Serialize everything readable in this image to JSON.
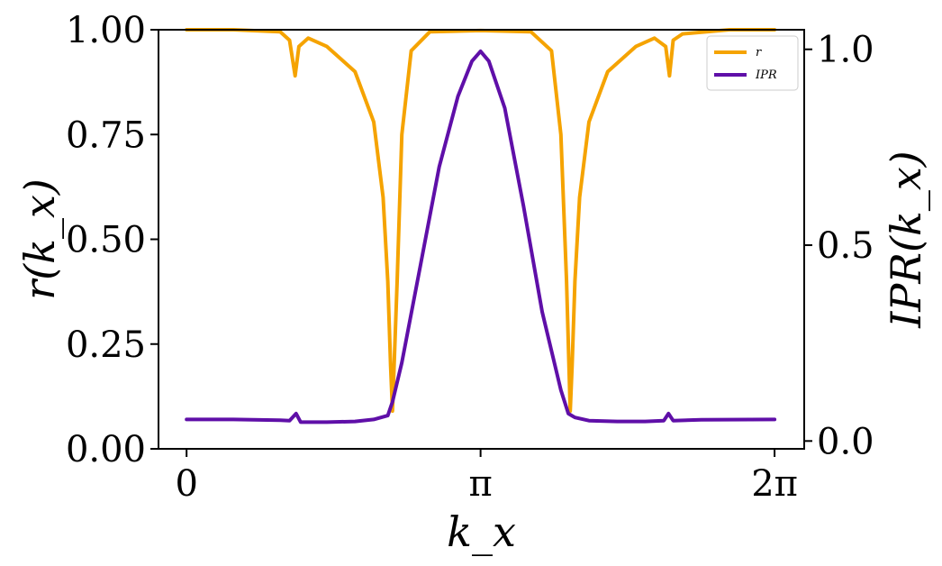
{
  "chart_data": {
    "type": "line",
    "xlabel": "k_x",
    "ylabel_left": "r(k_x)",
    "ylabel_right": "IPR(k_x)",
    "x_range": [
      -0.3,
      6.6
    ],
    "x_ticks": [
      {
        "value": 0,
        "label": "0"
      },
      {
        "value": 3.14159,
        "label": "π"
      },
      {
        "value": 6.28318,
        "label": "2π"
      }
    ],
    "ylim_left": [
      0,
      1
    ],
    "y_ticks_left": [
      {
        "value": 0,
        "label": "0.00"
      },
      {
        "value": 0.25,
        "label": "0.25"
      },
      {
        "value": 0.5,
        "label": "0.50"
      },
      {
        "value": 0.75,
        "label": "0.75"
      },
      {
        "value": 1,
        "label": "1.00"
      }
    ],
    "ylim_right": [
      -0.02,
      1.05
    ],
    "y_ticks_right": [
      {
        "value": 0,
        "label": "0.0"
      },
      {
        "value": 0.5,
        "label": "0.5"
      },
      {
        "value": 1,
        "label": "1.0"
      }
    ],
    "legend_position": "top-right",
    "series": [
      {
        "name": "r",
        "axis": "left",
        "color": "#f5a300",
        "x": [
          0,
          0.5,
          1.0,
          1.1,
          1.16,
          1.2,
          1.3,
          1.5,
          1.8,
          2.0,
          2.1,
          2.15,
          2.18,
          2.2,
          2.25,
          2.3,
          2.4,
          2.6,
          3.14159,
          3.68,
          3.9,
          4.0,
          4.06,
          4.1,
          4.12,
          4.15,
          4.2,
          4.3,
          4.5,
          4.8,
          5.0,
          5.12,
          5.16,
          5.2,
          5.3,
          5.8,
          6.28318
        ],
        "values": [
          1.0,
          1.0,
          0.995,
          0.975,
          0.89,
          0.96,
          0.98,
          0.96,
          0.9,
          0.78,
          0.6,
          0.4,
          0.2,
          0.09,
          0.4,
          0.75,
          0.95,
          0.995,
          0.998,
          0.995,
          0.95,
          0.75,
          0.4,
          0.09,
          0.2,
          0.4,
          0.6,
          0.78,
          0.9,
          0.96,
          0.98,
          0.96,
          0.89,
          0.975,
          0.99,
          1.0,
          1.0
        ]
      },
      {
        "name": "IPR",
        "axis": "right",
        "color": "#5f0fa8",
        "x": [
          0,
          0.5,
          1.0,
          1.1,
          1.17,
          1.22,
          1.5,
          1.8,
          2.0,
          2.15,
          2.2,
          2.3,
          2.5,
          2.7,
          2.9,
          3.05,
          3.14159,
          3.23,
          3.4,
          3.6,
          3.8,
          4.0,
          4.08,
          4.15,
          4.3,
          4.6,
          4.9,
          5.1,
          5.15,
          5.2,
          5.5,
          6.28318
        ],
        "values": [
          0.055,
          0.055,
          0.053,
          0.052,
          0.07,
          0.048,
          0.048,
          0.05,
          0.055,
          0.065,
          0.1,
          0.2,
          0.45,
          0.7,
          0.88,
          0.97,
          0.995,
          0.97,
          0.85,
          0.6,
          0.33,
          0.13,
          0.07,
          0.06,
          0.052,
          0.05,
          0.05,
          0.052,
          0.07,
          0.052,
          0.054,
          0.055
        ]
      }
    ]
  }
}
